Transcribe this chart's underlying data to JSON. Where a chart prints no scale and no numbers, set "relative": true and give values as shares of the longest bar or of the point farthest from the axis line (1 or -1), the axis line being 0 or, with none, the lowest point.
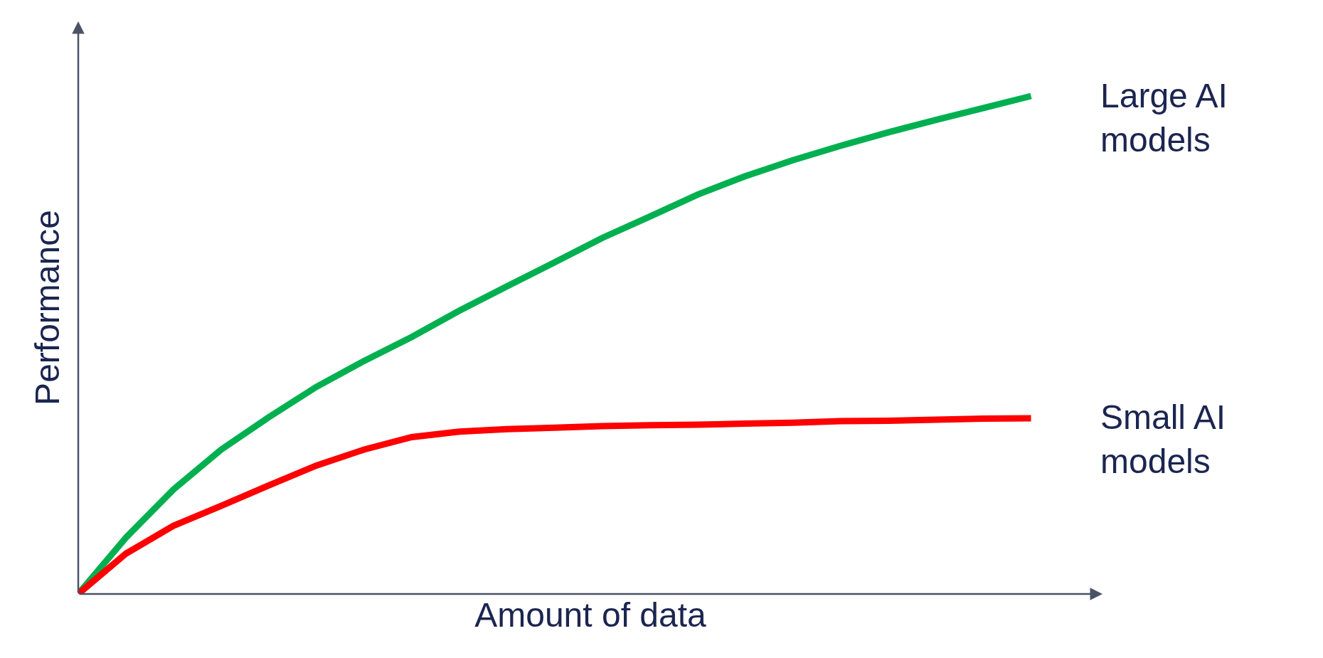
{
  "chart_data": {
    "type": "line",
    "relative": true,
    "xlabel": "Amount of data",
    "ylabel": "Performance",
    "categories": [
      null,
      null,
      null,
      null,
      null,
      null,
      null,
      null,
      null,
      null,
      null,
      null,
      null,
      null,
      null,
      null,
      null,
      null,
      null,
      null,
      null
    ],
    "legend": false,
    "grid": false,
    "marker": "none",
    "line_style": "solid",
    "series": [
      {
        "name": "Large AI models",
        "color": "#00b050",
        "values": [
          0,
          0.113,
          0.21,
          0.29,
          0.355,
          0.416,
          0.468,
          0.516,
          0.569,
          0.618,
          0.666,
          0.715,
          0.758,
          0.802,
          0.839,
          0.871,
          0.9,
          0.927,
          0.952,
          0.976,
          1
        ]
      },
      {
        "name": "Small AI models",
        "color": "#ff0000",
        "values": [
          0,
          0.081,
          0.137,
          0.177,
          0.218,
          0.258,
          0.29,
          0.315,
          0.326,
          0.331,
          0.334,
          0.337,
          0.339,
          0.34,
          0.342,
          0.344,
          0.347,
          0.348,
          0.35,
          0.352,
          0.353
        ]
      }
    ]
  }
}
